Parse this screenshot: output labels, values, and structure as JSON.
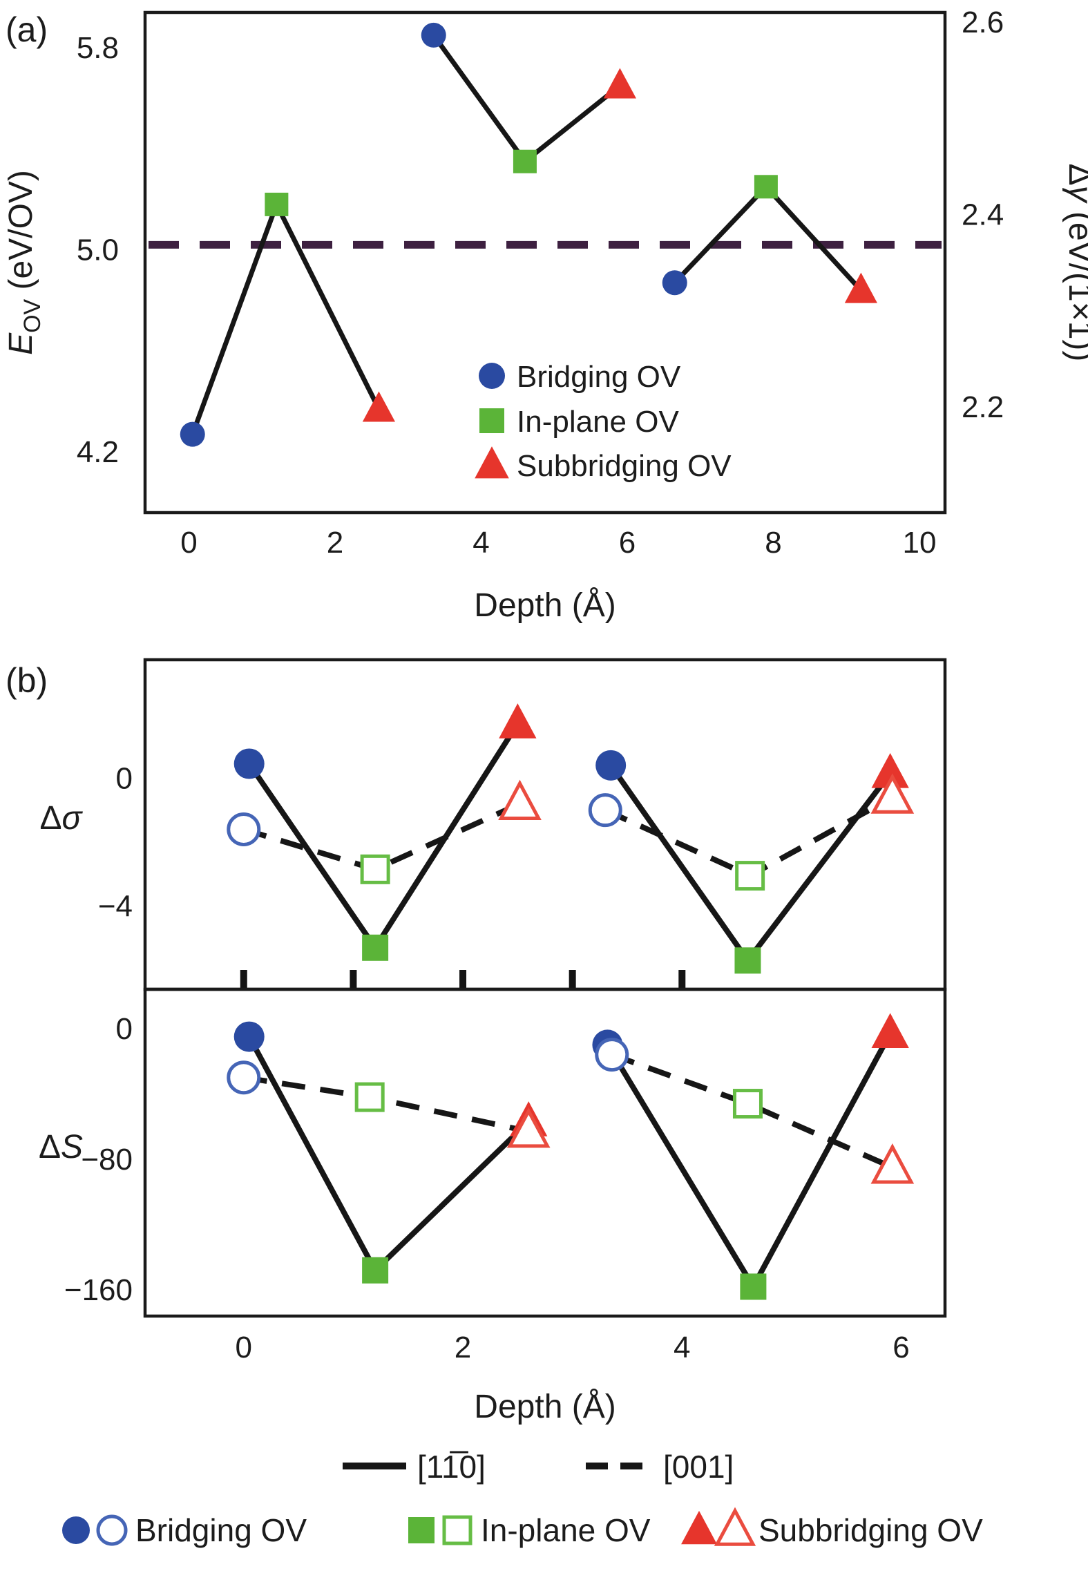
{
  "figure": {
    "panel_a_label": "(a)",
    "panel_b_label": "(b)"
  },
  "colors": {
    "bridging_blue": "#2a4aa1",
    "bridging_blue_open": "#4565b6",
    "inplane_green": "#5bb438",
    "inplane_green_open": "#66bd45",
    "subbridging_red": "#e6352c",
    "subbridging_red_open": "#ea4c3f",
    "line_black": "#161616",
    "hline_purple": "#3d2040"
  },
  "chart_data": [
    {
      "id": "panel_a",
      "type": "scatter",
      "title": "",
      "xlabel": "Depth (Å)",
      "x_range": [
        -0.6,
        10.35
      ],
      "x_ticks": [
        [
          0,
          "0"
        ],
        [
          2,
          "2"
        ],
        [
          4,
          "4"
        ],
        [
          6,
          "6"
        ],
        [
          8,
          "8"
        ],
        [
          10,
          "10"
        ]
      ],
      "grid": false,
      "left_axis": {
        "label_var": "E",
        "label_sub": "OV",
        "label_units": " (eV/OV)",
        "range": [
          3.96,
          5.94
        ],
        "ticks": [
          [
            4.2,
            "4.2"
          ],
          [
            5.0,
            "5.0"
          ],
          [
            5.8,
            "5.8"
          ]
        ]
      },
      "right_axis": {
        "label_prefix": "Δ",
        "label_var": "γ",
        "label_units": " (eV/(1×1))",
        "range": [
          2.09,
          2.61
        ],
        "ticks": [
          [
            2.2,
            "2.2"
          ],
          [
            2.4,
            "2.4"
          ],
          [
            2.6,
            "2.6"
          ]
        ]
      },
      "reference_line": {
        "y": 5.02,
        "style": "dashed"
      },
      "series_groups": [
        {
          "points": [
            {
              "x": 0.05,
              "y": 4.27,
              "marker": "circle",
              "label": "Bridging OV"
            },
            {
              "x": 1.2,
              "y": 5.18,
              "marker": "square",
              "label": "In-plane OV"
            },
            {
              "x": 2.6,
              "y": 4.37,
              "marker": "triangle",
              "label": "Subbridging OV"
            }
          ]
        },
        {
          "points": [
            {
              "x": 3.35,
              "y": 5.85,
              "marker": "circle",
              "label": "Bridging OV"
            },
            {
              "x": 4.6,
              "y": 5.35,
              "marker": "square",
              "label": "In-plane OV"
            },
            {
              "x": 5.9,
              "y": 5.65,
              "marker": "triangle",
              "label": "Subbridging OV"
            }
          ]
        },
        {
          "points": [
            {
              "x": 6.65,
              "y": 4.87,
              "marker": "circle",
              "label": "Bridging OV"
            },
            {
              "x": 7.9,
              "y": 5.25,
              "marker": "square",
              "label": "In-plane OV"
            },
            {
              "x": 9.2,
              "y": 4.84,
              "marker": "triangle",
              "label": "Subbridging OV"
            }
          ]
        }
      ],
      "legend": [
        {
          "marker": "circle",
          "label": "Bridging OV"
        },
        {
          "marker": "square",
          "label": "In-plane OV"
        },
        {
          "marker": "triangle",
          "label": "Subbridging OV"
        }
      ],
      "legend_position": "inside right"
    },
    {
      "id": "panel_b",
      "type": "scatter",
      "title": "",
      "xlabel": "Depth (Å)",
      "x_range": [
        -0.9,
        6.4
      ],
      "x_ticks": [
        [
          0,
          "0"
        ],
        [
          2,
          "2"
        ],
        [
          4,
          "4"
        ],
        [
          6,
          "6"
        ]
      ],
      "grid": false,
      "subplots": [
        {
          "ylabel_prefix": "Δ",
          "ylabel_var": "σ",
          "y_range": [
            -6.6,
            3.7
          ],
          "y_ticks": [
            [
              0,
              "0"
            ],
            [
              -4,
              "−4"
            ]
          ],
          "inner_x_ticks": [
            0,
            1,
            2,
            3,
            4
          ],
          "solid_groups": [
            [
              {
                "x": 0.05,
                "y": 0.45,
                "marker": "circle"
              },
              {
                "x": 1.2,
                "y": -5.3,
                "marker": "square"
              },
              {
                "x": 2.5,
                "y": 1.7,
                "marker": "triangle"
              }
            ],
            [
              {
                "x": 3.35,
                "y": 0.4,
                "marker": "circle"
              },
              {
                "x": 4.6,
                "y": -5.7,
                "marker": "square"
              },
              {
                "x": 5.9,
                "y": 0.15,
                "marker": "triangle"
              }
            ]
          ],
          "dashed_groups": [
            [
              {
                "x": 0.0,
                "y": -1.6,
                "marker": "circle"
              },
              {
                "x": 1.2,
                "y": -2.85,
                "marker": "square"
              },
              {
                "x": 2.52,
                "y": -0.8,
                "marker": "triangle"
              }
            ],
            [
              {
                "x": 3.3,
                "y": -1.0,
                "marker": "circle"
              },
              {
                "x": 4.62,
                "y": -3.05,
                "marker": "square"
              },
              {
                "x": 5.92,
                "y": -0.6,
                "marker": "triangle"
              }
            ]
          ]
        },
        {
          "ylabel_prefix": "Δ",
          "ylabel_var": "S",
          "y_range": [
            -176,
            24
          ],
          "y_ticks": [
            [
              0,
              "0"
            ],
            [
              -80,
              "−80"
            ],
            [
              -160,
              "−160"
            ]
          ],
          "inner_x_ticks": [],
          "solid_groups": [
            [
              {
                "x": 0.05,
                "y": -5,
                "marker": "circle"
              },
              {
                "x": 1.2,
                "y": -148,
                "marker": "square"
              },
              {
                "x": 2.6,
                "y": -57,
                "marker": "triangle"
              }
            ],
            [
              {
                "x": 3.32,
                "y": -10,
                "marker": "circle"
              },
              {
                "x": 4.65,
                "y": -158,
                "marker": "square"
              },
              {
                "x": 5.9,
                "y": -3,
                "marker": "triangle"
              }
            ]
          ],
          "dashed_groups": [
            [
              {
                "x": 0.0,
                "y": -30,
                "marker": "circle"
              },
              {
                "x": 1.15,
                "y": -42,
                "marker": "square"
              },
              {
                "x": 2.6,
                "y": -63,
                "marker": "triangle"
              }
            ],
            [
              {
                "x": 3.36,
                "y": -16,
                "marker": "circle"
              },
              {
                "x": 4.6,
                "y": -46,
                "marker": "square"
              },
              {
                "x": 5.92,
                "y": -85,
                "marker": "triangle"
              }
            ]
          ]
        }
      ],
      "line_legend": {
        "solid": "[11̅0]",
        "dashed": "[001]"
      },
      "marker_legend": [
        {
          "marker": "circle",
          "label": "Bridging OV"
        },
        {
          "marker": "square",
          "label": "In-plane OV"
        },
        {
          "marker": "triangle",
          "label": "Subbridging OV"
        }
      ],
      "legend_position": "below"
    }
  ]
}
